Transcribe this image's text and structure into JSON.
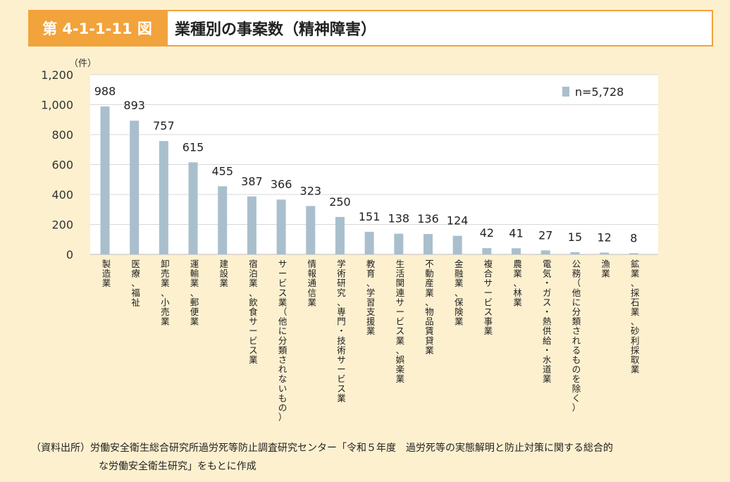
{
  "header": {
    "figure_number": "第 4-1-1-11 図",
    "title": "業種別の事案数（精神障害）"
  },
  "chart_data": {
    "type": "bar",
    "ylabel": "（件）",
    "ylim": [
      0,
      1200
    ],
    "yticks": [
      0,
      200,
      400,
      600,
      800,
      1000,
      1200
    ],
    "ytick_labels": [
      "0",
      "200",
      "400",
      "600",
      "800",
      "1,000",
      "1,200"
    ],
    "grid": true,
    "legend": {
      "position": "top-right",
      "label": "n=5,728"
    },
    "bar_color": "#a9bfcd",
    "categories": [
      "製造業",
      "医療、福祉",
      "卸売業、小売業",
      "運輸業、郵便業",
      "建設業",
      "宿泊業、飲食サービス業",
      "サービス業（他に分類されないもの）",
      "情報通信業",
      "学術研究、専門・技術サービス業",
      "教育、学習支援業",
      "生活関連サービス業、娯楽業",
      "不動産業、物品賃貸業",
      "金融業、保険業",
      "複合サービス事業",
      "農業、林業",
      "電気・ガス・熱供給・水道業",
      "公務（他に分類されるものを除く）",
      "漁業",
      "鉱業、採石業、砂利採取業"
    ],
    "values": [
      988,
      893,
      757,
      615,
      455,
      387,
      366,
      323,
      250,
      151,
      138,
      136,
      124,
      42,
      41,
      27,
      15,
      12,
      8
    ]
  },
  "source": {
    "line1": "（資料出所）労働安全衛生総合研究所過労死等防止調査研究センター「令和５年度　過労死等の実態解明と防止対策に関する総合的",
    "line2": "な労働安全衛生研究」をもとに作成"
  }
}
